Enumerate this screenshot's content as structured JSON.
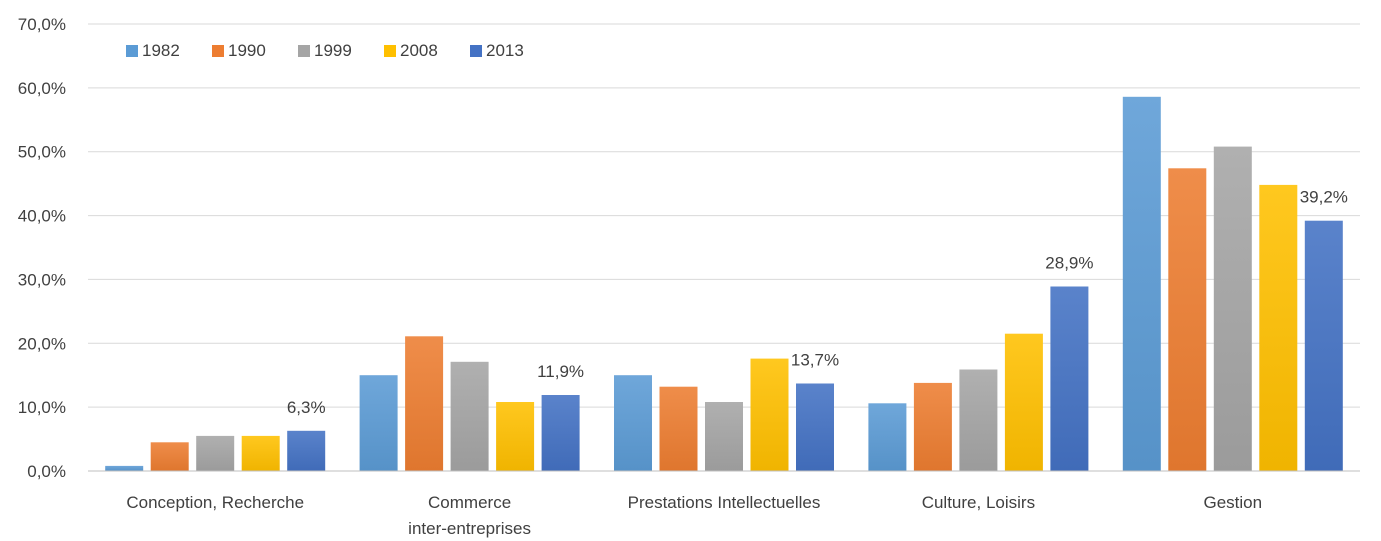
{
  "chart_data": {
    "type": "bar",
    "title": "",
    "xlabel": "",
    "ylabel": "",
    "ylim": [
      0,
      70
    ],
    "yticks": [
      "0,0%",
      "10,0%",
      "20,0%",
      "30,0%",
      "40,0%",
      "50,0%",
      "60,0%",
      "70,0%"
    ],
    "y_tick_values": [
      0,
      10,
      20,
      30,
      40,
      50,
      60,
      70
    ],
    "grid": true,
    "legend_position": "top-left",
    "categories": [
      [
        "Conception, Recherche"
      ],
      [
        "Commerce",
        "inter-entreprises"
      ],
      [
        "Prestations Intellectuelles"
      ],
      [
        "Culture, Loisirs"
      ],
      [
        "Gestion"
      ]
    ],
    "series": [
      {
        "name": "1982",
        "color": "#5b9bd5",
        "values": [
          0.8,
          15.0,
          15.0,
          10.6,
          58.6
        ]
      },
      {
        "name": "1990",
        "color": "#ed7d31",
        "values": [
          4.5,
          21.1,
          13.2,
          13.8,
          47.4
        ]
      },
      {
        "name": "1999",
        "color": "#a5a5a5",
        "values": [
          5.5,
          17.1,
          10.8,
          15.9,
          50.8
        ]
      },
      {
        "name": "2008",
        "color": "#ffc000",
        "values": [
          5.5,
          10.8,
          17.6,
          21.5,
          44.8
        ]
      },
      {
        "name": "2013",
        "color": "#4472c4",
        "values": [
          6.3,
          11.9,
          13.7,
          28.9,
          39.2
        ]
      }
    ],
    "data_labels": [
      {
        "series": "2013",
        "category_index": 0,
        "text": "6,3%"
      },
      {
        "series": "2013",
        "category_index": 1,
        "text": "11,9%"
      },
      {
        "series": "2013",
        "category_index": 2,
        "text": "13,7%"
      },
      {
        "series": "2013",
        "category_index": 3,
        "text": "28,9%"
      },
      {
        "series": "2013",
        "category_index": 4,
        "text": "39,2%"
      }
    ]
  }
}
